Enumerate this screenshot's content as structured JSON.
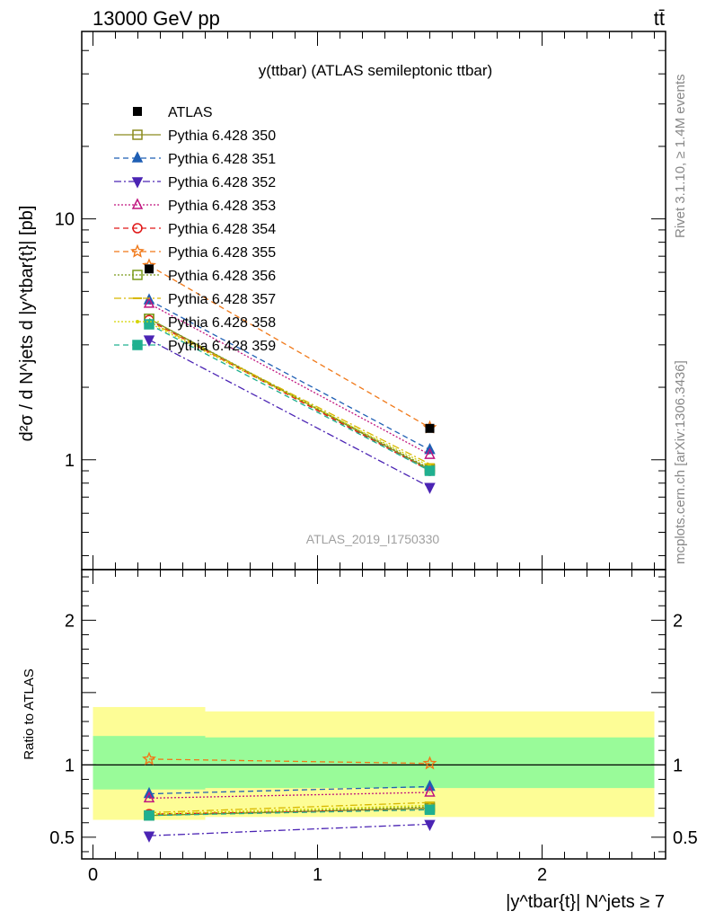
{
  "header": {
    "left": "13000 GeV pp",
    "right": "tt̄"
  },
  "side_labels": {
    "rivet": "Rivet 3.1.10, ≥ 1.4M events",
    "mcplots": "mcplots.cern.ch [arXiv:1306.3436]"
  },
  "watermark": "ATLAS_2019_I1750330",
  "chart_data": [
    {
      "type": "line",
      "title": "y(ttbar) (ATLAS semileptonic ttbar)",
      "ylabel": "d²σ / d N^jets d |y^tbar{t}| [pb]",
      "y_scale": "log",
      "ylim": [
        0.35,
        60
      ],
      "xlim": [
        -0.05,
        2.55
      ],
      "yticks": [
        1,
        10
      ],
      "ytick_labels": [
        "1",
        "10"
      ],
      "legend_placement": "top-left",
      "data": {
        "name": "ATLAS",
        "x": [
          0.25,
          1.5
        ],
        "y": [
          6.2,
          1.35
        ],
        "bins": [
          [
            0,
            0.5
          ],
          [
            0.5,
            2.5
          ]
        ]
      },
      "series": [
        {
          "name": "Pythia 6.428 350",
          "color": "#8b8b1e",
          "marker": "square-open",
          "dash": "solid",
          "values": [
            3.85,
            0.91
          ]
        },
        {
          "name": "Pythia 6.428 351",
          "color": "#1f5fb4",
          "marker": "triangle-up",
          "dash": "6,4",
          "values": [
            4.6,
            1.1
          ]
        },
        {
          "name": "Pythia 6.428 352",
          "color": "#4b24b4",
          "marker": "triangle-down",
          "dash": "8,3,2,3",
          "values": [
            3.15,
            0.77
          ]
        },
        {
          "name": "Pythia 6.428 353",
          "color": "#c0157f",
          "marker": "triangle-up-open",
          "dash": "2,2",
          "values": [
            4.45,
            1.05
          ]
        },
        {
          "name": "Pythia 6.428 354",
          "color": "#e01818",
          "marker": "circle-open",
          "dash": "6,4",
          "values": [
            3.8,
            0.9
          ]
        },
        {
          "name": "Pythia 6.428 355",
          "color": "#f07818",
          "marker": "star-open",
          "dash": "6,4",
          "values": [
            6.4,
            1.36
          ]
        },
        {
          "name": "Pythia 6.428 356",
          "color": "#7a9a1a",
          "marker": "square-open",
          "dash": "2,2",
          "values": [
            3.85,
            0.92
          ]
        },
        {
          "name": "Pythia 6.428 357",
          "color": "#d8b800",
          "marker": "dash",
          "dash": "8,3,2,3",
          "values": [
            3.75,
            0.96
          ]
        },
        {
          "name": "Pythia 6.428 358",
          "color": "#d4d400",
          "marker": "dot",
          "dash": "2,2",
          "values": [
            3.7,
            0.94
          ]
        },
        {
          "name": "Pythia 6.428 359",
          "color": "#20b090",
          "marker": "square",
          "dash": "6,4",
          "values": [
            3.65,
            0.9
          ]
        }
      ]
    },
    {
      "type": "line",
      "ylabel": "Ratio to ATLAS",
      "xlabel": "|y^tbar{t}| N^jets ≥ 7",
      "ylim": [
        0.35,
        2.35
      ],
      "xlim": [
        -0.05,
        2.55
      ],
      "xticks": [
        0,
        1,
        2
      ],
      "xtick_labels": [
        "0",
        "1",
        "2"
      ],
      "yticks": [
        0.5,
        1,
        2
      ],
      "ytick_labels": [
        "0.5",
        "1",
        "2"
      ],
      "bands": [
        {
          "x": [
            0,
            0.5
          ],
          "yellow": [
            0.62,
            1.4
          ],
          "green": [
            0.83,
            1.2
          ]
        },
        {
          "x": [
            0.5,
            2.5
          ],
          "yellow": [
            0.64,
            1.37
          ],
          "green": [
            0.84,
            1.19
          ]
        }
      ],
      "x": [
        0.25,
        1.5
      ],
      "series": [
        {
          "name": "Pythia 6.428 350",
          "values": [
            0.65,
            0.7
          ]
        },
        {
          "name": "Pythia 6.428 351",
          "values": [
            0.8,
            0.85
          ]
        },
        {
          "name": "Pythia 6.428 352",
          "values": [
            0.51,
            0.59
          ]
        },
        {
          "name": "Pythia 6.428 353",
          "values": [
            0.77,
            0.81
          ]
        },
        {
          "name": "Pythia 6.428 354",
          "values": [
            0.66,
            0.69
          ]
        },
        {
          "name": "Pythia 6.428 355",
          "values": [
            1.04,
            1.01
          ]
        },
        {
          "name": "Pythia 6.428 356",
          "values": [
            0.65,
            0.71
          ]
        },
        {
          "name": "Pythia 6.428 357",
          "values": [
            0.67,
            0.74
          ]
        },
        {
          "name": "Pythia 6.428 358",
          "values": [
            0.66,
            0.72
          ]
        },
        {
          "name": "Pythia 6.428 359",
          "values": [
            0.65,
            0.69
          ]
        }
      ]
    }
  ]
}
